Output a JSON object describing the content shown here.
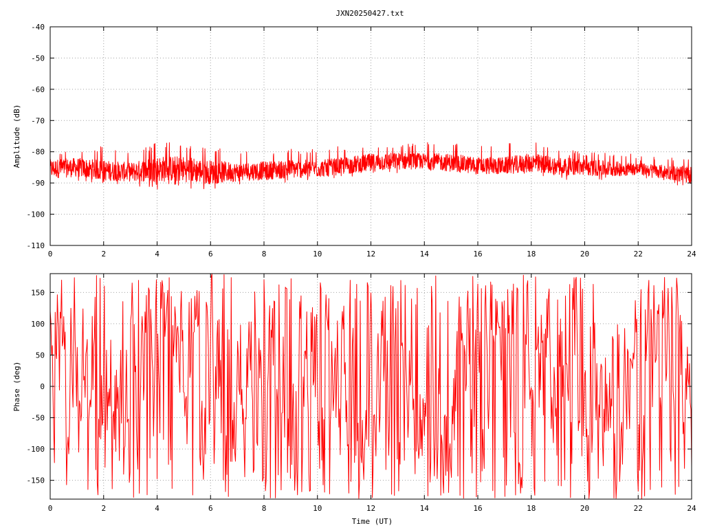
{
  "title": "JXN20250427.txt",
  "chart_data": [
    {
      "type": "line",
      "name": "amplitude-panel",
      "ylabel": "Amplitude (dB)",
      "xlabel": "",
      "xlim": [
        0,
        24
      ],
      "ylim": [
        -110,
        -40
      ],
      "x_ticks": [
        0,
        2,
        4,
        6,
        8,
        10,
        12,
        14,
        16,
        18,
        20,
        22,
        24
      ],
      "y_ticks": [
        -40,
        -50,
        -60,
        -70,
        -80,
        -90,
        -100,
        -110
      ],
      "y_tick_labels": [
        "-40",
        "-50",
        "-60",
        "-70",
        "-80",
        "-90",
        "-100",
        "-110"
      ],
      "grid": true,
      "color": "#ff0000",
      "series": [
        {
          "x": [
            0,
            1,
            2,
            3,
            4,
            5,
            6,
            7,
            8,
            9,
            10,
            11,
            12,
            13,
            14,
            15,
            16,
            17,
            18,
            19,
            20,
            21,
            22,
            23,
            24
          ],
          "y_mean": [
            -85.5,
            -85,
            -86,
            -86.5,
            -85.5,
            -85.5,
            -86.5,
            -86.5,
            -86,
            -85.5,
            -85.5,
            -84.5,
            -83.5,
            -83,
            -83,
            -83.5,
            -84.5,
            -84.5,
            -83.5,
            -84.5,
            -85,
            -85.5,
            -85.5,
            -86.5,
            -87.5
          ],
          "y_min": [
            -91,
            -90,
            -90,
            -91,
            -92,
            -92,
            -92,
            -91,
            -90.5,
            -90,
            -89,
            -88,
            -87.5,
            -87,
            -86,
            -86.5,
            -87,
            -87,
            -87,
            -89,
            -89.5,
            -89,
            -88,
            -90,
            -92
          ],
          "y_max": [
            -80,
            -79,
            -78,
            -80,
            -77,
            -77,
            -78,
            -80,
            -80,
            -79,
            -79,
            -78,
            -77,
            -77,
            -77,
            -76,
            -77,
            -77,
            -76,
            -79,
            -80,
            -80,
            -81,
            -82,
            -82
          ]
        }
      ]
    },
    {
      "type": "line",
      "name": "phase-panel",
      "ylabel": "Phase (deg)",
      "xlabel": "Time (UT)",
      "xlim": [
        0,
        24
      ],
      "ylim": [
        -180,
        180
      ],
      "x_ticks": [
        0,
        2,
        4,
        6,
        8,
        10,
        12,
        14,
        16,
        18,
        20,
        22,
        24
      ],
      "y_ticks": [
        150,
        100,
        50,
        0,
        -50,
        -100,
        -150
      ],
      "y_tick_labels": [
        "150",
        "100",
        "50",
        "0",
        "-50",
        "-100",
        "-150"
      ],
      "grid": true,
      "color": "#ff0000",
      "series": [
        {
          "x": [
            0,
            1,
            2,
            3,
            4,
            5,
            6,
            7,
            8,
            9,
            10,
            11,
            12,
            13,
            14,
            15,
            16,
            17,
            18,
            19,
            20,
            21,
            22,
            23,
            24
          ],
          "y_min": [
            -180,
            -180,
            -180,
            -180,
            -180,
            -180,
            -180,
            -180,
            -180,
            -180,
            -180,
            -180,
            -180,
            -180,
            -180,
            -180,
            -180,
            -180,
            -180,
            -180,
            -180,
            -180,
            -180,
            -180,
            -180
          ],
          "y_max": [
            180,
            180,
            180,
            180,
            180,
            180,
            180,
            180,
            180,
            180,
            180,
            180,
            180,
            180,
            180,
            180,
            180,
            180,
            180,
            180,
            180,
            180,
            180,
            180,
            180
          ]
        }
      ]
    }
  ]
}
